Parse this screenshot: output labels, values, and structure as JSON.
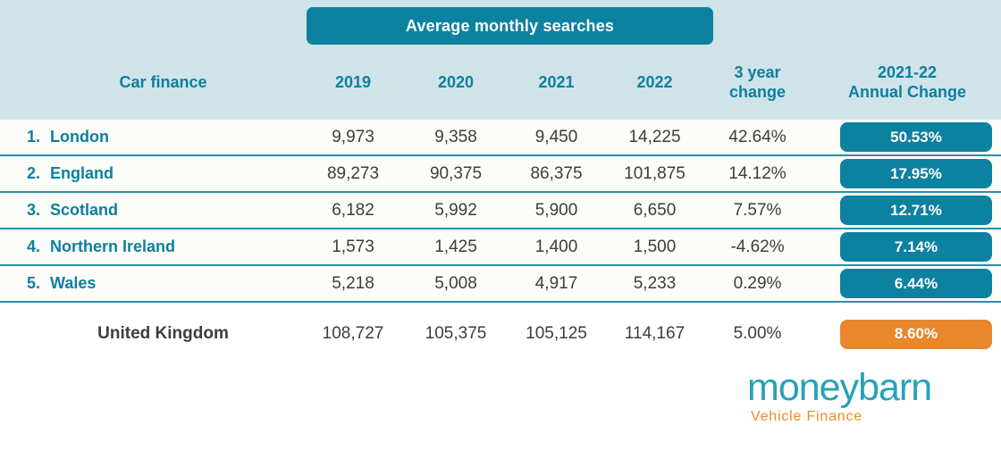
{
  "title_band": {
    "label": "Average monthly searches"
  },
  "header": {
    "row_label": "Car finance",
    "years": [
      "2019",
      "2020",
      "2021",
      "2022"
    ],
    "change_3yr": {
      "line1": "3 year",
      "line2": "change"
    },
    "annual_change": {
      "line1": "2021-22",
      "line2": "Annual Change"
    }
  },
  "rows": [
    {
      "rank": "1.",
      "name": "London",
      "v2019": "9,973",
      "v2020": "9,358",
      "v2021": "9,450",
      "v2022": "14,225",
      "change3yr": "42.64%",
      "annual_change": "50.53%"
    },
    {
      "rank": "2.",
      "name": "England",
      "v2019": "89,273",
      "v2020": "90,375",
      "v2021": "86,375",
      "v2022": "101,875",
      "change3yr": "14.12%",
      "annual_change": "17.95%"
    },
    {
      "rank": "3.",
      "name": "Scotland",
      "v2019": "6,182",
      "v2020": "5,992",
      "v2021": "5,900",
      "v2022": "6,650",
      "change3yr": "7.57%",
      "annual_change": "12.71%"
    },
    {
      "rank": "4.",
      "name": "Northern Ireland",
      "v2019": "1,573",
      "v2020": "1,425",
      "v2021": "1,400",
      "v2022": "1,500",
      "change3yr": "-4.62%",
      "annual_change": "7.14%"
    },
    {
      "rank": "5.",
      "name": "Wales",
      "v2019": "5,218",
      "v2020": "5,008",
      "v2021": "4,917",
      "v2022": "5,233",
      "change3yr": "0.29%",
      "annual_change": "6.44%"
    }
  ],
  "total_row": {
    "name": "United Kingdom",
    "v2019": "108,727",
    "v2020": "105,375",
    "v2021": "105,125",
    "v2022": "114,167",
    "change3yr": "5.00%",
    "annual_change": "8.60%"
  },
  "logo": {
    "brand": "moneybarn",
    "tagline": "Vehicle Finance"
  },
  "colors": {
    "teal": "#0d82a0",
    "light_blue_panel": "#d0e3e9",
    "orange_badge": "#e8872b",
    "row_separator": "#2d8ea9",
    "text_dark": "#3d3d3d",
    "logo_teal": "#29a1b5",
    "logo_orange": "#f08b23"
  },
  "chart_data": {
    "type": "table",
    "title": "Average monthly searches",
    "row_header": "Car finance",
    "columns": [
      "2019",
      "2020",
      "2021",
      "2022",
      "3 year change",
      "2021-22 Annual Change"
    ],
    "rows": [
      {
        "rank": 1,
        "name": "London",
        "values": [
          9973,
          9358,
          9450,
          14225
        ],
        "change_3yr_pct": 42.64,
        "annual_change_pct": 50.53
      },
      {
        "rank": 2,
        "name": "England",
        "values": [
          89273,
          90375,
          86375,
          101875
        ],
        "change_3yr_pct": 14.12,
        "annual_change_pct": 17.95
      },
      {
        "rank": 3,
        "name": "Scotland",
        "values": [
          6182,
          5992,
          5900,
          6650
        ],
        "change_3yr_pct": 7.57,
        "annual_change_pct": 12.71
      },
      {
        "rank": 4,
        "name": "Northern Ireland",
        "values": [
          1573,
          1425,
          1400,
          1500
        ],
        "change_3yr_pct": -4.62,
        "annual_change_pct": 7.14
      },
      {
        "rank": 5,
        "name": "Wales",
        "values": [
          5218,
          5008,
          4917,
          5233
        ],
        "change_3yr_pct": 0.29,
        "annual_change_pct": 6.44
      }
    ],
    "total": {
      "name": "United Kingdom",
      "values": [
        108727,
        105375,
        105125,
        114167
      ],
      "change_3yr_pct": 5.0,
      "annual_change_pct": 8.6
    }
  }
}
